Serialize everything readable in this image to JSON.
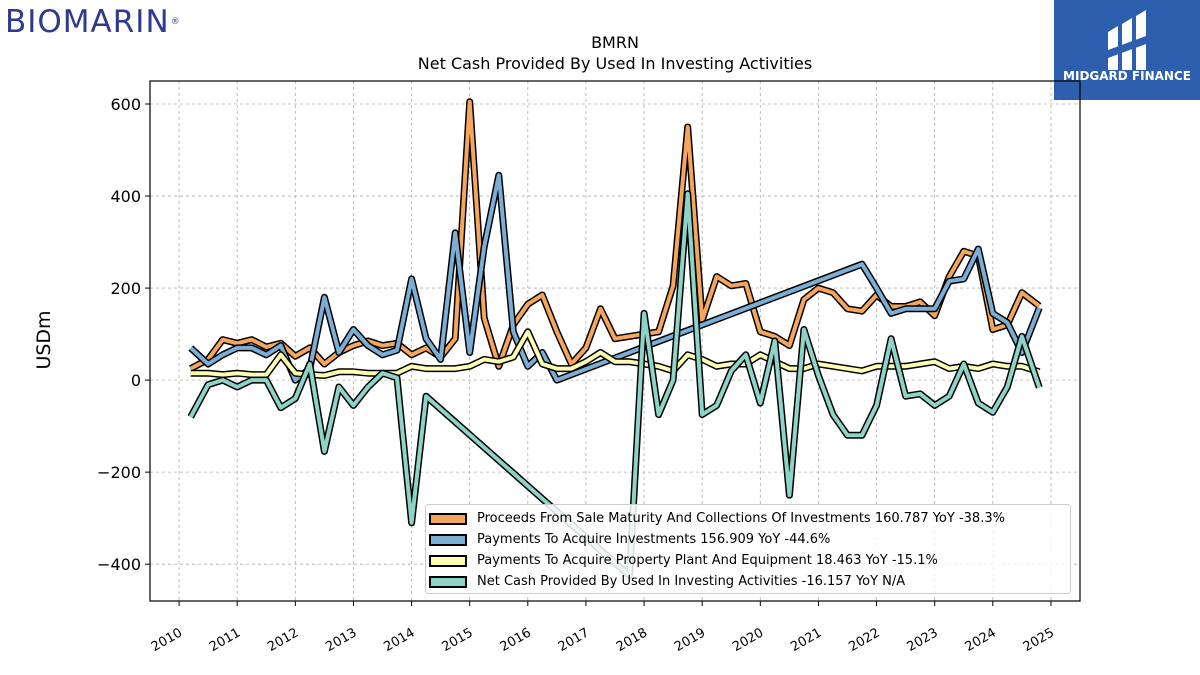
{
  "brand": {
    "left_logo": "BIOMARIN",
    "left_logo_mark": "®",
    "right_logo": "MIDGARD FINANCE"
  },
  "chart_data": {
    "type": "line",
    "title": "BMRN",
    "subtitle": "Net Cash Provided By Used In Investing Activities",
    "ylabel": "USDm",
    "xlabel": "",
    "xlim": [
      2009.5,
      2025.5
    ],
    "ylim": [
      -480,
      650
    ],
    "yticks": [
      -400,
      -200,
      0,
      200,
      400,
      600
    ],
    "ytick_labels": [
      "−400",
      "−200",
      "0",
      "200",
      "400",
      "600"
    ],
    "xticks": [
      2010,
      2011,
      2012,
      2013,
      2014,
      2015,
      2016,
      2017,
      2018,
      2019,
      2020,
      2021,
      2022,
      2023,
      2024,
      2025
    ],
    "xtick_labels": [
      "2010",
      "2011",
      "2012",
      "2013",
      "2014",
      "2015",
      "2016",
      "2017",
      "2018",
      "2019",
      "2020",
      "2021",
      "2022",
      "2023",
      "2024",
      "2025"
    ],
    "grid": true,
    "legend_position": "lower-right",
    "series": [
      {
        "name": "Proceeds From Sale Maturity And Collections Of Investments",
        "legend_label": "Proceeds From Sale Maturity And Collections Of Investments  160.787 YoY -38.3%",
        "color": "#f5a55c",
        "points": [
          [
            2010.2,
            25
          ],
          [
            2010.5,
            45
          ],
          [
            2010.75,
            88
          ],
          [
            2011.0,
            80
          ],
          [
            2011.25,
            88
          ],
          [
            2011.5,
            72
          ],
          [
            2011.75,
            80
          ],
          [
            2012.0,
            52
          ],
          [
            2012.25,
            70
          ],
          [
            2012.5,
            35
          ],
          [
            2012.75,
            60
          ],
          [
            2013.0,
            75
          ],
          [
            2013.25,
            85
          ],
          [
            2013.5,
            75
          ],
          [
            2013.75,
            80
          ],
          [
            2014.0,
            55
          ],
          [
            2014.25,
            70
          ],
          [
            2014.5,
            50
          ],
          [
            2014.75,
            90
          ],
          [
            2015.0,
            605
          ],
          [
            2015.25,
            135
          ],
          [
            2015.5,
            30
          ],
          [
            2015.75,
            120
          ],
          [
            2016.0,
            165
          ],
          [
            2016.25,
            185
          ],
          [
            2016.5,
            105
          ],
          [
            2016.75,
            35
          ],
          [
            2017.0,
            70
          ],
          [
            2017.25,
            155
          ],
          [
            2017.5,
            90
          ],
          [
            2017.75,
            95
          ],
          [
            2018.0,
            100
          ],
          [
            2018.25,
            105
          ],
          [
            2018.5,
            205
          ],
          [
            2018.75,
            550
          ],
          [
            2019.0,
            130
          ],
          [
            2019.25,
            225
          ],
          [
            2019.5,
            205
          ],
          [
            2019.75,
            210
          ],
          [
            2020.0,
            105
          ],
          [
            2020.25,
            95
          ],
          [
            2020.5,
            75
          ],
          [
            2020.75,
            175
          ],
          [
            2021.0,
            200
          ],
          [
            2021.25,
            190
          ],
          [
            2021.5,
            155
          ],
          [
            2021.75,
            150
          ],
          [
            2022.0,
            185
          ],
          [
            2022.25,
            160
          ],
          [
            2022.5,
            160
          ],
          [
            2022.75,
            170
          ],
          [
            2023.0,
            140
          ],
          [
            2023.25,
            225
          ],
          [
            2023.5,
            280
          ],
          [
            2023.75,
            270
          ],
          [
            2024.0,
            110
          ],
          [
            2024.25,
            120
          ],
          [
            2024.5,
            190
          ],
          [
            2024.8,
            161
          ]
        ]
      },
      {
        "name": "Payments To Acquire Investments",
        "legend_label": "Payments To Acquire Investments  156.909 YoY -44.6%",
        "color": "#7aaed4",
        "points": [
          [
            2010.2,
            70
          ],
          [
            2010.5,
            35
          ],
          [
            2010.75,
            55
          ],
          [
            2011.0,
            70
          ],
          [
            2011.25,
            70
          ],
          [
            2011.5,
            55
          ],
          [
            2011.75,
            75
          ],
          [
            2012.0,
            0
          ],
          [
            2012.25,
            25
          ],
          [
            2012.5,
            180
          ],
          [
            2012.75,
            60
          ],
          [
            2013.0,
            110
          ],
          [
            2013.25,
            75
          ],
          [
            2013.5,
            55
          ],
          [
            2013.75,
            65
          ],
          [
            2014.0,
            220
          ],
          [
            2014.25,
            90
          ],
          [
            2014.5,
            45
          ],
          [
            2014.75,
            320
          ],
          [
            2015.0,
            60
          ],
          [
            2015.25,
            290
          ],
          [
            2015.5,
            445
          ],
          [
            2015.75,
            105
          ],
          [
            2016.0,
            30
          ],
          [
            2016.25,
            60
          ],
          [
            2016.5,
            0
          ],
          [
            2017.75,
            60
          ],
          [
            2021.75,
            252
          ],
          [
            2022.0,
            200
          ],
          [
            2022.25,
            145
          ],
          [
            2022.5,
            155
          ],
          [
            2022.75,
            155
          ],
          [
            2023.0,
            155
          ],
          [
            2023.25,
            215
          ],
          [
            2023.5,
            220
          ],
          [
            2023.75,
            285
          ],
          [
            2024.0,
            145
          ],
          [
            2024.25,
            125
          ],
          [
            2024.5,
            60
          ],
          [
            2024.8,
            157
          ]
        ]
      },
      {
        "name": "Payments To Acquire Property Plant And Equipment",
        "legend_label": "Payments To Acquire Property Plant And Equipment  18.463 YoY -15.1%",
        "color": "#ffffb3",
        "points": [
          [
            2010.2,
            15
          ],
          [
            2010.5,
            15
          ],
          [
            2010.75,
            12
          ],
          [
            2011.0,
            15
          ],
          [
            2011.25,
            12
          ],
          [
            2011.5,
            12
          ],
          [
            2011.75,
            55
          ],
          [
            2012.0,
            15
          ],
          [
            2012.25,
            12
          ],
          [
            2012.5,
            10
          ],
          [
            2012.75,
            18
          ],
          [
            2013.0,
            18
          ],
          [
            2013.25,
            15
          ],
          [
            2013.5,
            15
          ],
          [
            2013.75,
            15
          ],
          [
            2014.0,
            30
          ],
          [
            2014.25,
            25
          ],
          [
            2014.5,
            25
          ],
          [
            2014.75,
            25
          ],
          [
            2015.0,
            30
          ],
          [
            2015.25,
            45
          ],
          [
            2015.5,
            40
          ],
          [
            2015.75,
            50
          ],
          [
            2016.0,
            105
          ],
          [
            2016.25,
            35
          ],
          [
            2016.5,
            25
          ],
          [
            2016.75,
            25
          ],
          [
            2017.0,
            40
          ],
          [
            2017.25,
            60
          ],
          [
            2017.5,
            40
          ],
          [
            2017.75,
            40
          ],
          [
            2018.0,
            35
          ],
          [
            2018.25,
            30
          ],
          [
            2018.5,
            20
          ],
          [
            2018.75,
            55
          ],
          [
            2019.0,
            45
          ],
          [
            2019.25,
            30
          ],
          [
            2019.5,
            35
          ],
          [
            2019.75,
            35
          ],
          [
            2020.0,
            55
          ],
          [
            2020.25,
            40
          ],
          [
            2020.5,
            25
          ],
          [
            2020.75,
            25
          ],
          [
            2021.0,
            35
          ],
          [
            2021.25,
            30
          ],
          [
            2021.5,
            25
          ],
          [
            2021.75,
            20
          ],
          [
            2022.0,
            30
          ],
          [
            2022.25,
            30
          ],
          [
            2022.5,
            30
          ],
          [
            2022.75,
            35
          ],
          [
            2023.0,
            40
          ],
          [
            2023.25,
            25
          ],
          [
            2023.5,
            30
          ],
          [
            2023.75,
            25
          ],
          [
            2024.0,
            35
          ],
          [
            2024.25,
            30
          ],
          [
            2024.5,
            30
          ],
          [
            2024.8,
            18
          ]
        ]
      },
      {
        "name": "Net Cash Provided By Used In Investing Activities",
        "legend_label": "Net Cash Provided By Used In Investing Activities  -16.157 YoY N/A",
        "color": "#8dd3c7",
        "points": [
          [
            2010.2,
            -80
          ],
          [
            2010.5,
            -10
          ],
          [
            2010.75,
            0
          ],
          [
            2011.0,
            -15
          ],
          [
            2011.25,
            0
          ],
          [
            2011.5,
            0
          ],
          [
            2011.75,
            -60
          ],
          [
            2012.0,
            -40
          ],
          [
            2012.25,
            35
          ],
          [
            2012.5,
            -155
          ],
          [
            2012.75,
            -15
          ],
          [
            2013.0,
            -55
          ],
          [
            2013.25,
            -15
          ],
          [
            2013.5,
            15
          ],
          [
            2013.75,
            5
          ],
          [
            2014.0,
            -310
          ],
          [
            2014.25,
            -35
          ],
          [
            2017.75,
            -425
          ],
          [
            2018.0,
            145
          ],
          [
            2018.25,
            -75
          ],
          [
            2018.5,
            0
          ],
          [
            2018.75,
            405
          ],
          [
            2019.0,
            -75
          ],
          [
            2019.25,
            -55
          ],
          [
            2019.5,
            20
          ],
          [
            2019.75,
            55
          ],
          [
            2020.0,
            -50
          ],
          [
            2020.25,
            85
          ],
          [
            2020.5,
            -250
          ],
          [
            2020.75,
            110
          ],
          [
            2021.0,
            10
          ],
          [
            2021.25,
            -75
          ],
          [
            2021.5,
            -120
          ],
          [
            2021.75,
            -120
          ],
          [
            2022.0,
            -55
          ],
          [
            2022.25,
            90
          ],
          [
            2022.5,
            -35
          ],
          [
            2022.75,
            -30
          ],
          [
            2023.0,
            -55
          ],
          [
            2023.25,
            -35
          ],
          [
            2023.5,
            35
          ],
          [
            2023.75,
            -50
          ],
          [
            2024.0,
            -70
          ],
          [
            2024.25,
            -15
          ],
          [
            2024.5,
            95
          ],
          [
            2024.8,
            -16
          ]
        ]
      }
    ]
  }
}
